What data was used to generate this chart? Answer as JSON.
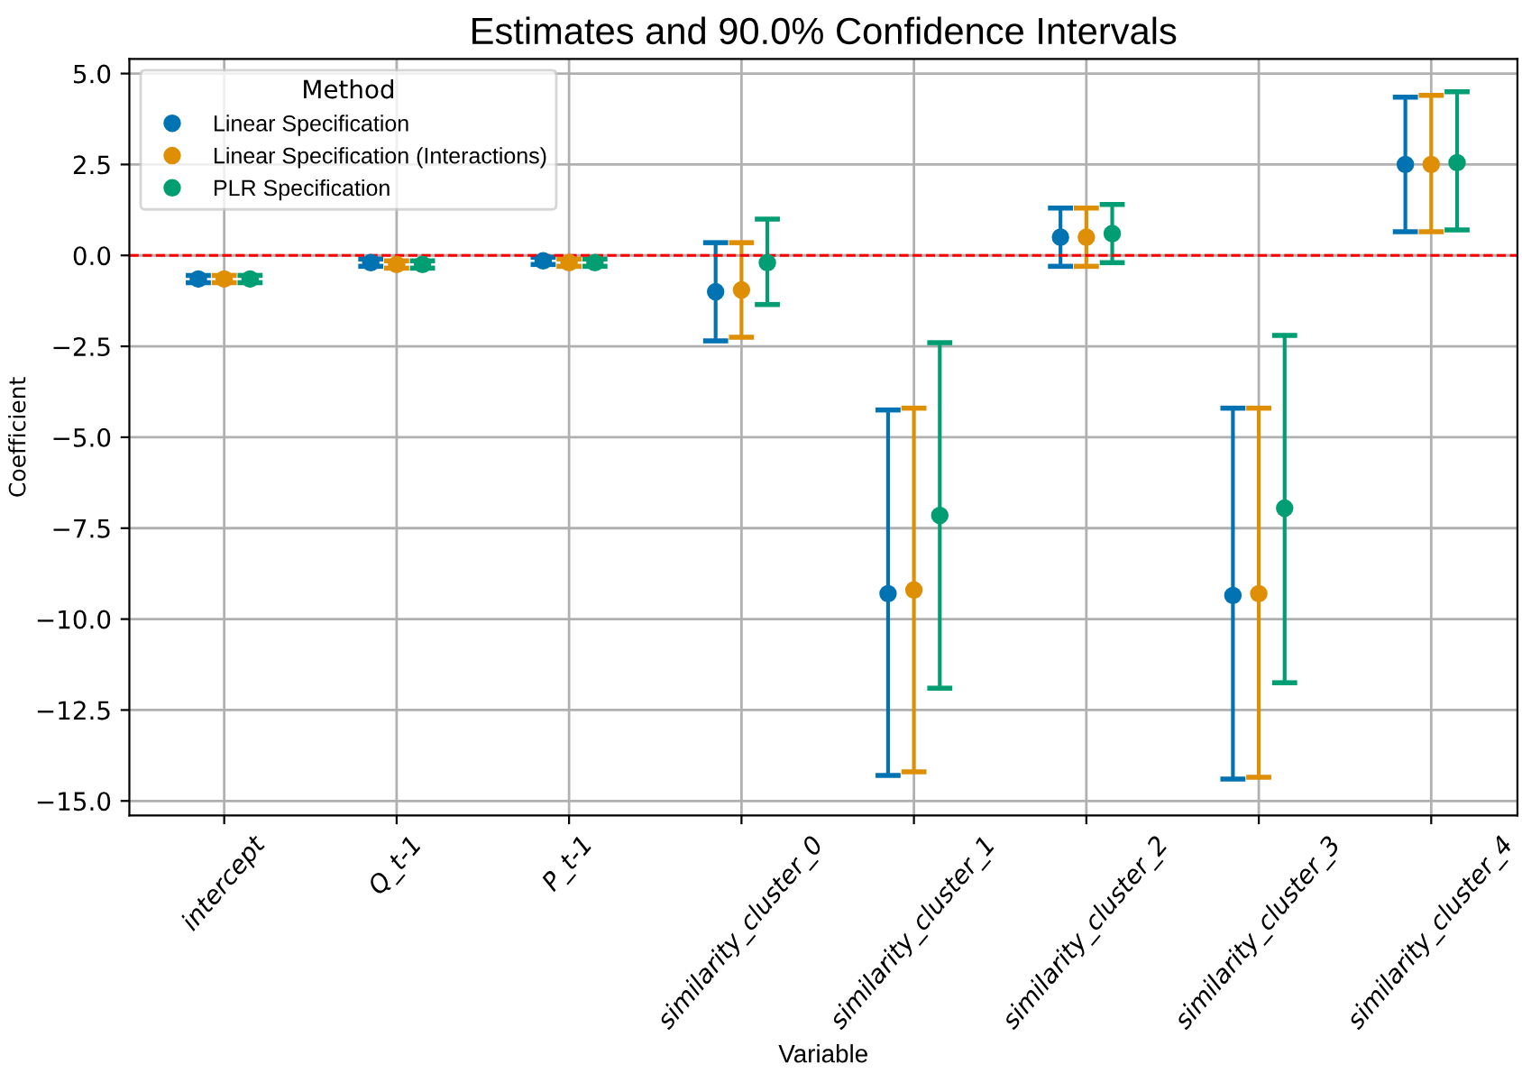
{
  "chart_data": {
    "type": "scatter",
    "title": "Estimates and 90.0% Confidence Intervals",
    "xlabel": "Variable",
    "ylabel": "Coefficient",
    "legend_title": "Method",
    "legend": "top left",
    "grid": true,
    "marker": "circle",
    "categories": [
      "intercept",
      "Q_t-1",
      "P_t-1",
      "similarity_cluster_0",
      "similarity_cluster_1",
      "similarity_cluster_2",
      "similarity_cluster_3",
      "similarity_cluster_4"
    ],
    "series": [
      {
        "name": "Linear Specification",
        "color": "#0173b2",
        "values": [
          -0.65,
          -0.2,
          -0.15,
          -1.0,
          -9.3,
          0.5,
          -9.35,
          2.5
        ],
        "errors": [
          [
            -0.75,
            -0.55
          ],
          [
            -0.3,
            -0.1
          ],
          [
            -0.25,
            -0.05
          ],
          [
            -2.35,
            0.35
          ],
          [
            -14.3,
            -4.25
          ],
          [
            -0.3,
            1.3
          ],
          [
            -14.4,
            -4.2
          ],
          [
            0.65,
            4.35
          ]
        ]
      },
      {
        "name": "Linear Specification (Interactions)",
        "color": "#de8f05",
        "values": [
          -0.65,
          -0.25,
          -0.2,
          -0.95,
          -9.2,
          0.5,
          -9.3,
          2.5
        ],
        "errors": [
          [
            -0.75,
            -0.55
          ],
          [
            -0.35,
            -0.15
          ],
          [
            -0.3,
            -0.1
          ],
          [
            -2.25,
            0.35
          ],
          [
            -14.2,
            -4.2
          ],
          [
            -0.3,
            1.3
          ],
          [
            -14.35,
            -4.2
          ],
          [
            0.65,
            4.4
          ]
        ]
      },
      {
        "name": "PLR Specification",
        "color": "#029e73",
        "values": [
          -0.65,
          -0.25,
          -0.2,
          -0.2,
          -7.15,
          0.6,
          -6.95,
          2.55
        ],
        "errors": [
          [
            -0.75,
            -0.55
          ],
          [
            -0.35,
            -0.15
          ],
          [
            -0.3,
            -0.1
          ],
          [
            -1.35,
            1.0
          ],
          [
            -11.9,
            -2.4
          ],
          [
            -0.2,
            1.4
          ],
          [
            -11.75,
            -2.2
          ],
          [
            0.7,
            4.5
          ]
        ]
      }
    ],
    "ylim": [
      -15.4,
      5.4
    ],
    "yticks": [
      {
        "value": -15,
        "label": "−15.0"
      },
      {
        "value": -12.5,
        "label": "−12.5"
      },
      {
        "value": -10,
        "label": "−10.0"
      },
      {
        "value": -7.5,
        "label": "−7.5"
      },
      {
        "value": -5,
        "label": "−5.0"
      },
      {
        "value": -2.5,
        "label": "−2.5"
      },
      {
        "value": 0,
        "label": "0.0"
      },
      {
        "value": 2.5,
        "label": "2.5"
      },
      {
        "value": 5,
        "label": "5.0"
      }
    ],
    "ref_lines": [
      {
        "axis": "y",
        "value": 0,
        "color": "#ff0000",
        "line_style": "dashed"
      }
    ]
  }
}
